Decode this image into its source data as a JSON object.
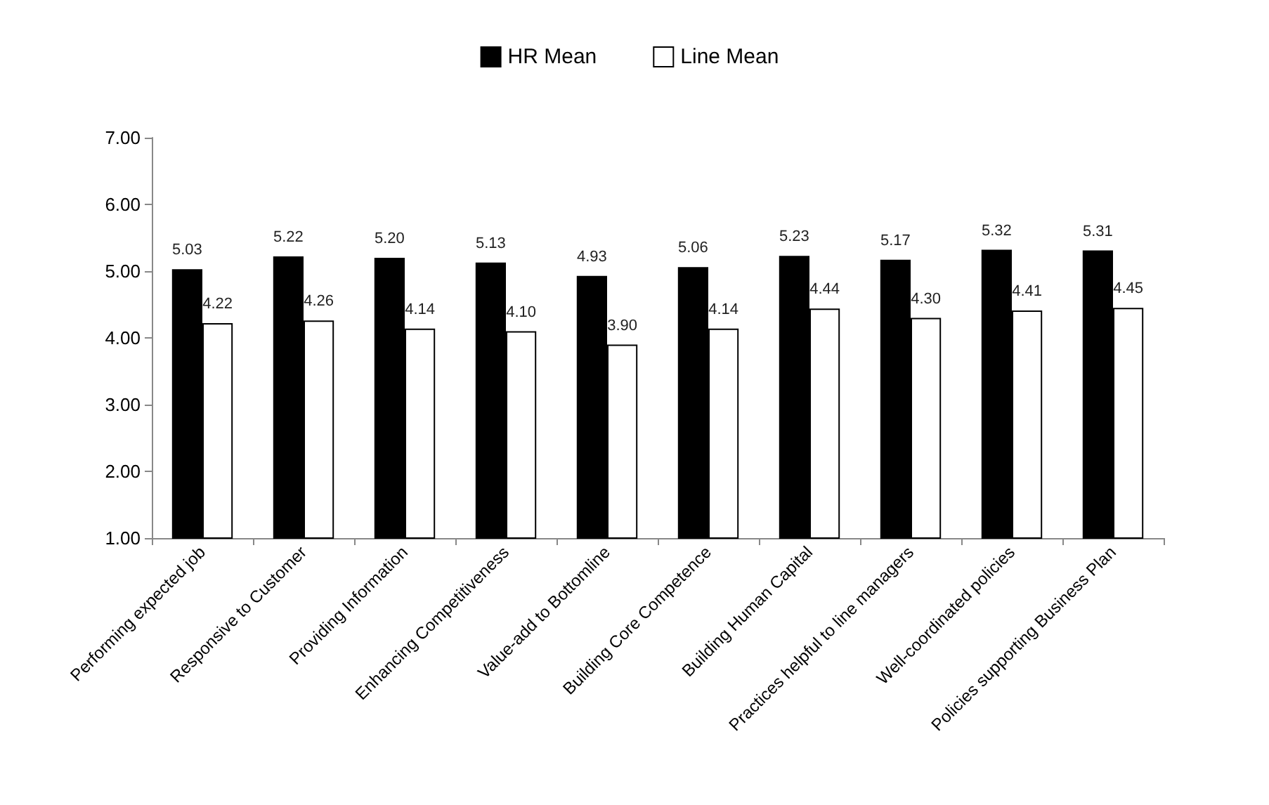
{
  "chart_data": {
    "type": "bar",
    "categories": [
      "Performing expected job",
      "Responsive to Customer",
      "Providing Information",
      "Enhancing Competitiveness",
      "Value-add to Bottomline",
      "Building Core Competence",
      "Building Human Capital",
      "Practices helpful to line managers",
      "Well-coordinated policies",
      "Policies supporting Business Plan"
    ],
    "series": [
      {
        "name": "HR Mean",
        "color": "#000000",
        "values": [
          5.03,
          5.22,
          5.2,
          5.13,
          4.93,
          5.06,
          5.23,
          5.17,
          5.32,
          5.31
        ],
        "value_labels": [
          "5.03",
          "5.22",
          "5.20",
          "5.13",
          "4.93",
          "5.06",
          "5.23",
          "5.17",
          "5.32",
          "5.31"
        ]
      },
      {
        "name": "Line Mean",
        "color": "#ffffff",
        "values": [
          4.22,
          4.26,
          4.14,
          4.1,
          3.9,
          4.14,
          4.44,
          4.3,
          4.41,
          4.45
        ],
        "value_labels": [
          "4.22",
          "4.26",
          "4.14",
          "4.10",
          "3.90",
          "4.14",
          "4.44",
          "4.30",
          "4.41",
          "4.45"
        ]
      }
    ],
    "ylim": [
      1,
      7
    ],
    "yticks": [
      {
        "value": 1,
        "label": "1.00"
      },
      {
        "value": 2,
        "label": "2.00"
      },
      {
        "value": 3,
        "label": "3.00"
      },
      {
        "value": 4,
        "label": "4.00"
      },
      {
        "value": 5,
        "label": "5.00"
      },
      {
        "value": 6,
        "label": "6.00"
      },
      {
        "value": 7,
        "label": "7.00"
      }
    ],
    "grid": false,
    "legend": "top"
  }
}
